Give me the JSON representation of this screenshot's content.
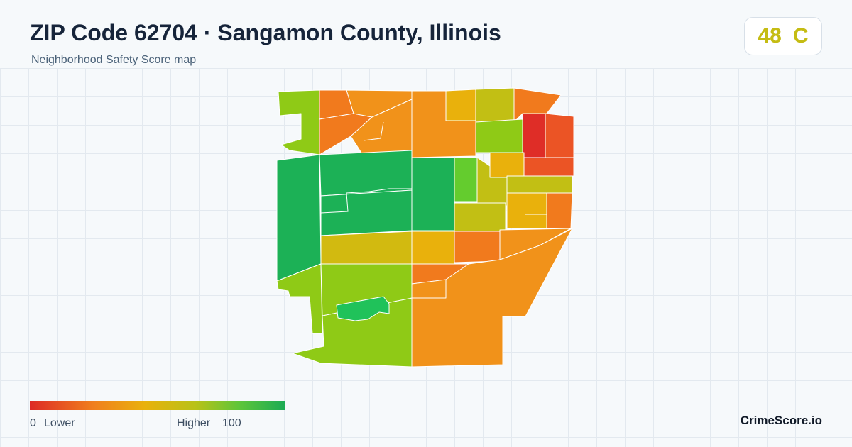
{
  "header": {
    "title": "ZIP Code 62704 · Sangamon County, Illinois",
    "subtitle": "Neighborhood Safety Score map"
  },
  "score": {
    "value": "48",
    "grade": "C",
    "color": "#c5bc13"
  },
  "legend": {
    "min_value": "0",
    "min_label": "Lower",
    "max_label": "Higher",
    "max_value": "100",
    "colors": [
      "#dd2a26",
      "#f07f1e",
      "#e9b10c",
      "#b8c218",
      "#5ec53a",
      "#1bab55"
    ]
  },
  "brand": "CrimeScore.io",
  "map": {
    "region_colors": {
      "dark-green": "#1cb156",
      "green": "#64cc2e",
      "yellow-green": "#8fca16",
      "olive": "#c2bf14",
      "mustard": "#d2ba10",
      "amber": "#e9b10c",
      "orange": "#f1921a",
      "deep-orange": "#f17a1d",
      "red-orange": "#eb5425",
      "red": "#df2d27",
      "bright-green": "#20c25a"
    }
  }
}
